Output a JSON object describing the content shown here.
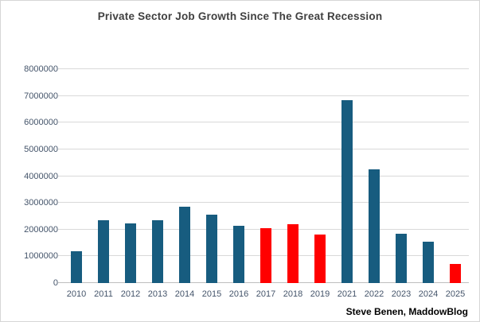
{
  "chart_data": {
    "type": "bar",
    "title": "Private Sector Job Growth Since The Great Recession",
    "attribution": "Steve Benen, MaddowBlog",
    "categories": [
      "2010",
      "2011",
      "2012",
      "2013",
      "2014",
      "2015",
      "2016",
      "2017",
      "2018",
      "2019",
      "2021",
      "2022",
      "2023",
      "2024",
      "2025"
    ],
    "values": [
      1200000,
      2350000,
      2225000,
      2350000,
      2850000,
      2550000,
      2150000,
      2050000,
      2200000,
      1800000,
      6850000,
      4250000,
      1850000,
      1550000,
      725000
    ],
    "highlighted_categories": [
      "2017",
      "2018",
      "2019",
      "2025"
    ],
    "ytick_labels": [
      "0",
      "1000000",
      "2000000",
      "3000000",
      "4000000",
      "5000000",
      "6000000",
      "7000000",
      "8000000"
    ],
    "ylim": [
      0,
      8000000
    ],
    "xlabel": "",
    "ylabel": "",
    "grid": "horizontal",
    "legend_position": "none",
    "colors": {
      "bar_default": "#175c7f",
      "bar_highlight": "#ff0000",
      "gridline": "#d9d9d9",
      "axis_text": "#44546a",
      "title_text": "#404040",
      "attribution_text": "#000000",
      "background": "#ffffff"
    }
  }
}
